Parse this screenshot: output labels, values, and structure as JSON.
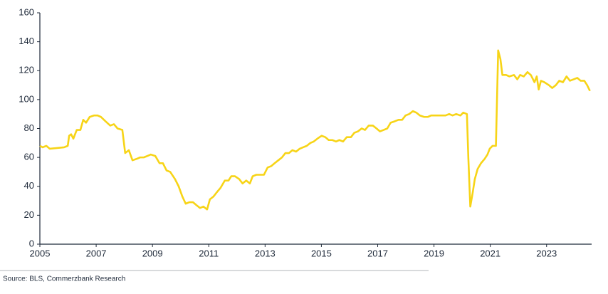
{
  "chart_data": {
    "type": "line",
    "source": "Source: BLS, Commerzbank Research",
    "x": [
      2005.0,
      2005.1,
      2005.23,
      2005.35,
      2005.61,
      2005.86,
      2005.99,
      2006.04,
      2006.11,
      2006.19,
      2006.31,
      2006.44,
      2006.54,
      2006.64,
      2006.77,
      2006.92,
      2007.05,
      2007.17,
      2007.33,
      2007.5,
      2007.63,
      2007.76,
      2007.93,
      2008.03,
      2008.16,
      2008.29,
      2008.44,
      2008.56,
      2008.69,
      2008.82,
      2008.94,
      2009.1,
      2009.25,
      2009.37,
      2009.5,
      2009.63,
      2009.8,
      2009.93,
      2010.06,
      2010.18,
      2010.31,
      2010.44,
      2010.56,
      2010.69,
      2010.81,
      2010.94,
      2011.04,
      2011.17,
      2011.29,
      2011.42,
      2011.57,
      2011.7,
      2011.8,
      2011.93,
      2012.08,
      2012.2,
      2012.33,
      2012.46,
      2012.56,
      2012.69,
      2012.84,
      2012.96,
      2013.09,
      2013.22,
      2013.34,
      2013.47,
      2013.6,
      2013.72,
      2013.85,
      2013.97,
      2014.1,
      2014.23,
      2014.35,
      2014.48,
      2014.61,
      2014.73,
      2014.86,
      2015.01,
      2015.14,
      2015.26,
      2015.39,
      2015.52,
      2015.64,
      2015.77,
      2015.9,
      2016.05,
      2016.17,
      2016.3,
      2016.43,
      2016.55,
      2016.68,
      2016.83,
      2016.96,
      2017.08,
      2017.21,
      2017.34,
      2017.46,
      2017.61,
      2017.74,
      2017.87,
      2017.99,
      2018.12,
      2018.25,
      2018.37,
      2018.5,
      2018.65,
      2018.78,
      2018.9,
      2019.03,
      2019.16,
      2019.28,
      2019.41,
      2019.54,
      2019.66,
      2019.79,
      2019.94,
      2020.04,
      2020.17,
      2020.22,
      2020.29,
      2020.37,
      2020.45,
      2020.55,
      2020.67,
      2020.8,
      2020.9,
      2020.98,
      2021.08,
      2021.15,
      2021.2,
      2021.28,
      2021.36,
      2021.43,
      2021.56,
      2021.68,
      2021.84,
      2021.96,
      2022.06,
      2022.19,
      2022.32,
      2022.44,
      2022.57,
      2022.65,
      2022.72,
      2022.8,
      2022.92,
      2023.08,
      2023.2,
      2023.33,
      2023.45,
      2023.58,
      2023.71,
      2023.83,
      2023.96,
      2024.09,
      2024.21,
      2024.34,
      2024.44,
      2024.54
    ],
    "series": [
      {
        "color": "#f7d417",
        "values": [
          68,
          67,
          68,
          66,
          66.5,
          67,
          68,
          75,
          76,
          73,
          79,
          79,
          86,
          84,
          88,
          89,
          89,
          88,
          85,
          82,
          83,
          80,
          79,
          63,
          65,
          58,
          59,
          60,
          60,
          61,
          62,
          61,
          56,
          56,
          51,
          50,
          45,
          40,
          33,
          28,
          29,
          29,
          27,
          25,
          26,
          24,
          31,
          33,
          36,
          39,
          44,
          44,
          47,
          47,
          45,
          42,
          44,
          42,
          47,
          48,
          48,
          48,
          53,
          54,
          56,
          58,
          60,
          63,
          63,
          65,
          64,
          66,
          67,
          68,
          70,
          71,
          73,
          75,
          74,
          72,
          72,
          71,
          72,
          71,
          74,
          74,
          77,
          78,
          80,
          79,
          82,
          82,
          80,
          78,
          79,
          80,
          84,
          85,
          86,
          86,
          89,
          90,
          92,
          91,
          89,
          88,
          88,
          89,
          89,
          89,
          89,
          89,
          90,
          89,
          90,
          89,
          91,
          90,
          60,
          26,
          35,
          45,
          52,
          56,
          59,
          62,
          66,
          68,
          68,
          68,
          134,
          128,
          117,
          117,
          116,
          117,
          114,
          117,
          116,
          119,
          117,
          112,
          116,
          107,
          113,
          112,
          110,
          108,
          110,
          113,
          112,
          116,
          113,
          114,
          115,
          113,
          113,
          110,
          106
        ]
      }
    ],
    "xlim": [
      2005,
      2024.6
    ],
    "xticks": [
      2005,
      2007,
      2009,
      2011,
      2013,
      2015,
      2017,
      2019,
      2021,
      2023
    ],
    "ylim": [
      0,
      160
    ],
    "yticks": [
      0,
      20,
      40,
      60,
      80,
      100,
      120,
      140,
      160
    ]
  }
}
